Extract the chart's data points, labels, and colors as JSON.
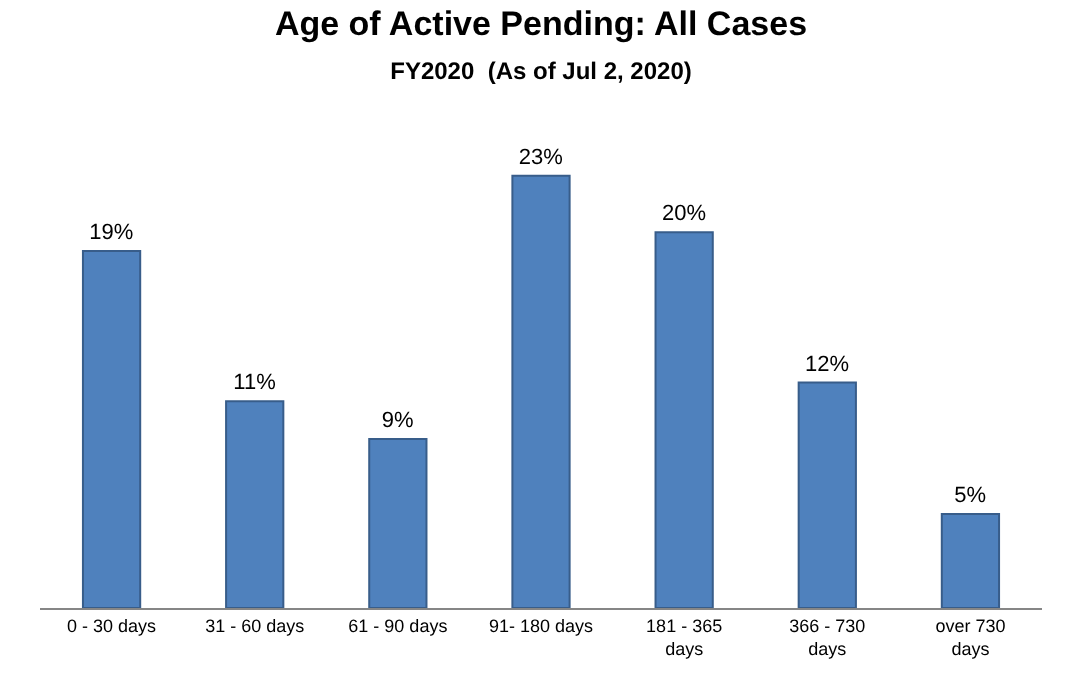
{
  "chart_data": {
    "type": "bar",
    "title": "Age of Active Pending: All Cases",
    "subtitle": "FY2020  (As of Jul 2, 2020)",
    "categories": [
      "0 - 30 days",
      "31 - 60 days",
      "61 - 90 days",
      "91- 180 days",
      "181 - 365 days",
      "366 - 730 days",
      "over 730 days"
    ],
    "values": [
      19,
      11,
      9,
      23,
      20,
      12,
      5
    ],
    "value_labels": [
      "19%",
      "11%",
      "9%",
      "23%",
      "20%",
      "12%",
      "5%"
    ],
    "color": "#4f81bd"
  }
}
